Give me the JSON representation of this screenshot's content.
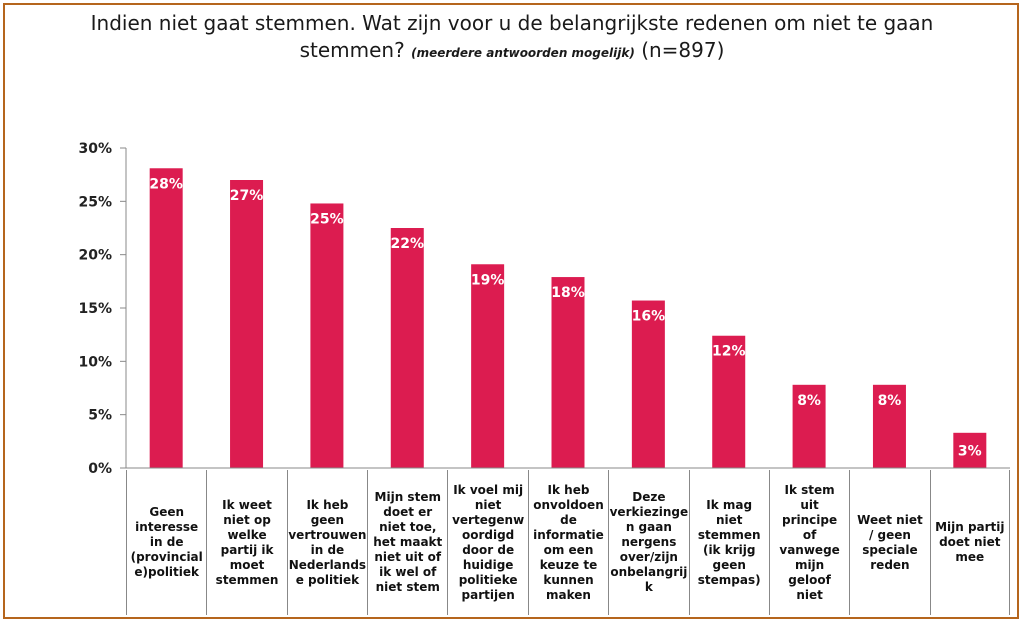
{
  "title": {
    "main": "Indien niet gaat stemmen. Wat zijn voor u de belangrijkste redenen om niet te gaan stemmen?",
    "note": "(meerdere antwoorden mogelijk)",
    "n": "(n=897)"
  },
  "colors": {
    "bar": "#dc1c50",
    "frame": "#b5651d",
    "grid": "#888888"
  },
  "chart_data": {
    "type": "bar",
    "categories": [
      "Geen interesse in de (provinciale)politiek",
      "Ik weet niet op welke partij ik moet stemmen",
      "Ik heb geen vertrouwen in de Nederlandse politiek",
      "Mijn stem doet er niet toe, het maakt niet uit of ik wel of niet stem",
      "Ik voel mij niet vertegenwoordigd door de huidige politieke partijen",
      "Ik heb onvoldoende informatie om een keuze te kunnen maken",
      "Deze verkiezingen gaan nergens over/zijn onbelangrijk",
      "Ik mag niet stemmen (ik krijg geen stempas)",
      "Ik stem uit principe of vanwege mijn geloof niet",
      "Weet niet / geen speciale reden",
      "Mijn partij doet niet mee"
    ],
    "category_lines": [
      [
        "Geen",
        "interesse",
        "in de",
        "(provincial",
        "e)politiek"
      ],
      [
        "Ik weet",
        "niet op",
        "welke",
        "partij ik",
        "moet",
        "stemmen"
      ],
      [
        "Ik heb",
        "geen",
        "vertrouwen",
        "in de",
        "Nederlands",
        "e politiek"
      ],
      [
        "Mijn stem",
        "doet er",
        "niet toe,",
        "het maakt",
        "niet uit of",
        "ik wel of",
        "niet stem"
      ],
      [
        "Ik voel mij",
        "niet",
        "vertegenw",
        "oordigd",
        "door de",
        "huidige",
        "politieke",
        "partijen"
      ],
      [
        "Ik heb",
        "onvoldoen",
        "de",
        "informatie",
        "om een",
        "keuze te",
        "kunnen",
        "maken"
      ],
      [
        "Deze",
        "verkiezinge",
        "n gaan",
        "nergens",
        "over/zijn",
        "onbelangrij",
        "k"
      ],
      [
        "Ik mag",
        "niet",
        "stemmen",
        "(ik krijg",
        "geen",
        "stempas)"
      ],
      [
        "Ik stem uit",
        "principe of",
        "vanwege",
        "mijn",
        "geloof niet"
      ],
      [
        "Weet niet",
        "/ geen",
        "speciale",
        "reden"
      ],
      [
        "Mijn partij",
        "doet niet",
        "mee"
      ]
    ],
    "values": [
      28,
      27,
      25,
      22,
      19,
      18,
      16,
      12,
      8,
      8,
      3
    ],
    "bar_heights": [
      28.1,
      27.0,
      24.8,
      22.5,
      19.1,
      17.9,
      15.7,
      12.4,
      7.8,
      7.8,
      3.3
    ],
    "data_labels": [
      "28%",
      "27%",
      "25%",
      "22%",
      "19%",
      "18%",
      "16%",
      "12%",
      "8%",
      "8%",
      "3%"
    ],
    "y_ticks": [
      "0%",
      "5%",
      "10%",
      "15%",
      "20%",
      "25%",
      "30%"
    ],
    "ylim": [
      0,
      30
    ],
    "grid": false,
    "legend": "none"
  }
}
